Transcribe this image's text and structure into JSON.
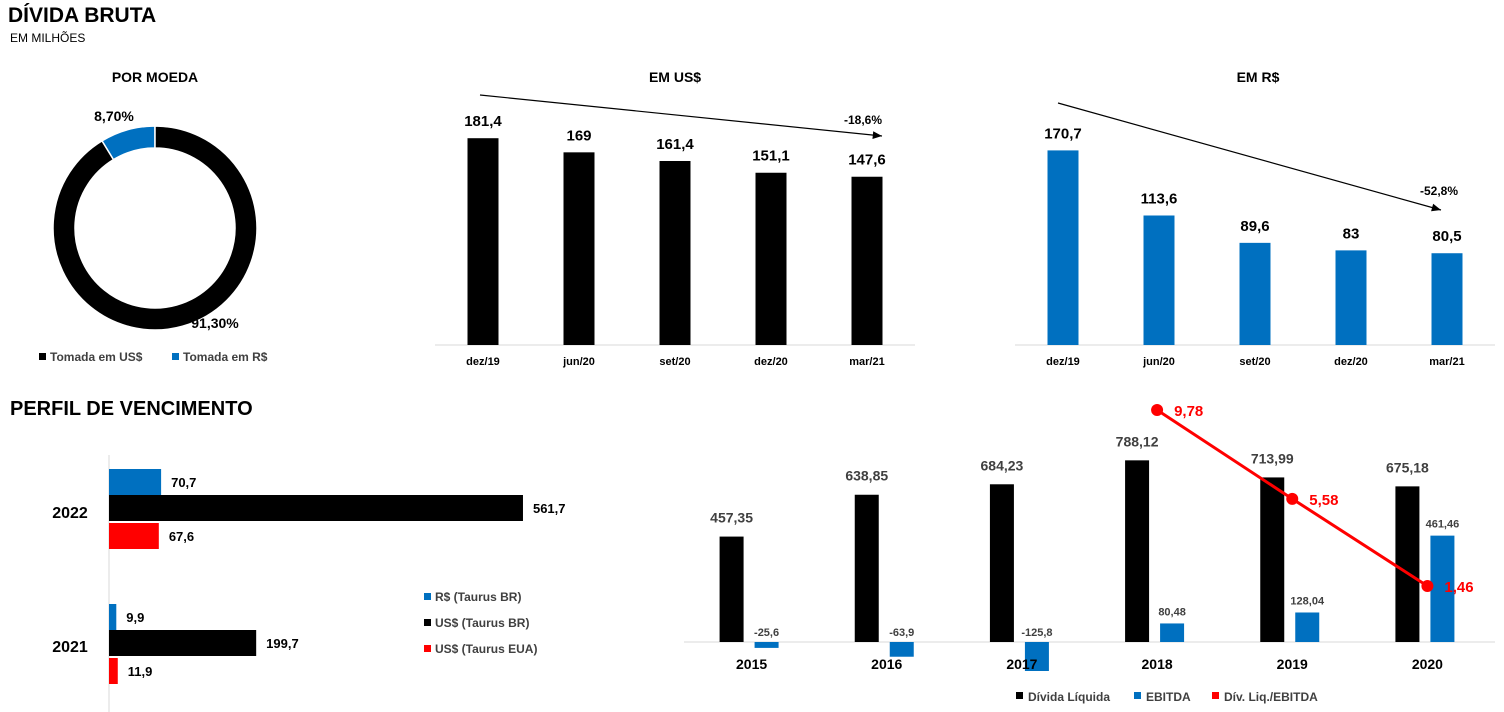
{
  "header": {
    "title": "DÍVIDA BRUTA",
    "subtitle": "EM MILHÕES",
    "section2": "PERFIL DE VENCIMENTO"
  },
  "colors": {
    "black": "#000000",
    "blue": "#0070C0",
    "red": "#FF0000"
  },
  "chart_data": [
    {
      "id": "por-moeda",
      "type": "pie",
      "title": "POR MOEDA",
      "slices": [
        {
          "name": "Tomada em US$",
          "value": 91.3,
          "label": "91,30%",
          "color": "#000000"
        },
        {
          "name": "Tomada em R$",
          "value": 8.7,
          "label": "8,70%",
          "color": "#0070C0"
        }
      ],
      "legend": "bottom"
    },
    {
      "id": "em-usd",
      "type": "bar",
      "title": "EM US$",
      "categories": [
        "dez/19",
        "jun/20",
        "set/20",
        "dez/20",
        "mar/21"
      ],
      "values": [
        181.4,
        169,
        161.4,
        151.1,
        147.6
      ],
      "labels": [
        "181,4",
        "169",
        "161,4",
        "151,1",
        "147,6"
      ],
      "color": "#000000",
      "annotation": "-18,6%"
    },
    {
      "id": "em-brl",
      "type": "bar",
      "title": "EM R$",
      "categories": [
        "dez/19",
        "jun/20",
        "set/20",
        "dez/20",
        "mar/21"
      ],
      "values": [
        170.7,
        113.6,
        89.6,
        83,
        80.5
      ],
      "labels": [
        "170,7",
        "113,6",
        "89,6",
        "83",
        "80,5"
      ],
      "color": "#0070C0",
      "annotation": "-52,8%"
    },
    {
      "id": "vencimento",
      "type": "bar",
      "orientation": "horizontal",
      "categories": [
        "2022",
        "2021"
      ],
      "series": [
        {
          "name": "R$ (Taurus BR)",
          "values": [
            70.7,
            9.9
          ],
          "labels": [
            "70,7",
            "9,9"
          ],
          "color": "#0070C0"
        },
        {
          "name": "US$ (Taurus BR)",
          "values": [
            561.7,
            199.7
          ],
          "labels": [
            "561,7",
            "199,7"
          ],
          "color": "#000000"
        },
        {
          "name": "US$ (Taurus EUA)",
          "values": [
            67.6,
            11.9
          ],
          "labels": [
            "67,6",
            "11,9"
          ],
          "color": "#FF0000"
        }
      ],
      "legend": "right"
    },
    {
      "id": "divida-ebitda",
      "type": "bar",
      "categories": [
        "2015",
        "2016",
        "2017",
        "2018",
        "2019",
        "2020"
      ],
      "series": [
        {
          "name": "Dívida Líquida",
          "values": [
            457.35,
            638.85,
            684.23,
            788.12,
            713.99,
            675.18
          ],
          "labels": [
            "457,35",
            "638,85",
            "684,23",
            "788,12",
            "713,99",
            "675,18"
          ],
          "color": "#000000"
        },
        {
          "name": "EBITDA",
          "values": [
            -25.6,
            -63.9,
            -125.8,
            80.48,
            128.04,
            461.46
          ],
          "labels": [
            "-25,6",
            "-63,9",
            "-125,8",
            "80,48",
            "128,04",
            "461,46"
          ],
          "color": "#0070C0"
        },
        {
          "name": "Dív. Liq./EBITDA",
          "type": "line",
          "x": [
            "2018",
            "2019",
            "2020"
          ],
          "values": [
            9.78,
            5.58,
            1.46
          ],
          "labels": [
            "9,78",
            "5,58",
            "1,46"
          ],
          "color": "#FF0000"
        }
      ],
      "legend": "bottom"
    }
  ]
}
